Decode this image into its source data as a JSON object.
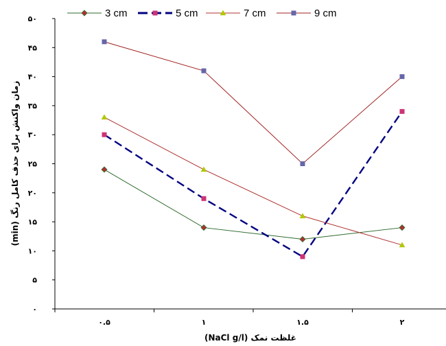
{
  "chart_data": {
    "type": "line",
    "x": [
      "۰.۵",
      "۱",
      "۱.۵",
      "۲"
    ],
    "y_ticks": [
      "۰",
      "۵",
      "۱۰",
      "۱۵",
      "۲۰",
      "۲۵",
      "۳۰",
      "۳۵",
      "۴۰",
      "۴۵",
      "۵۰"
    ],
    "ylim": [
      0,
      50
    ],
    "xlabel": "غلظت نمک  (NaCl g/l)",
    "ylabel": "زمان واکنش برای حذف کامل رنگ (min)",
    "legend_position": "top",
    "grid": false,
    "series": [
      {
        "name": "3 cm",
        "values": [
          24,
          14,
          12,
          14
        ],
        "color": "#2e6b2e",
        "marker": "diamond",
        "dash": "solid"
      },
      {
        "name": "5 cm",
        "values": [
          30,
          19,
          9,
          34
        ],
        "color": "#000080",
        "marker": "square",
        "dash": "dashed",
        "marker_color": "#cc3377"
      },
      {
        "name": "7 cm",
        "values": [
          33,
          24,
          16,
          11
        ],
        "color": "#b03030",
        "marker": "triangle",
        "dash": "solid",
        "marker_color": "#b0c800"
      },
      {
        "name": "9 cm",
        "values": [
          46,
          41,
          25,
          40
        ],
        "color": "#a02020",
        "marker": "square",
        "dash": "solid",
        "marker_color": "#6666aa"
      }
    ]
  }
}
